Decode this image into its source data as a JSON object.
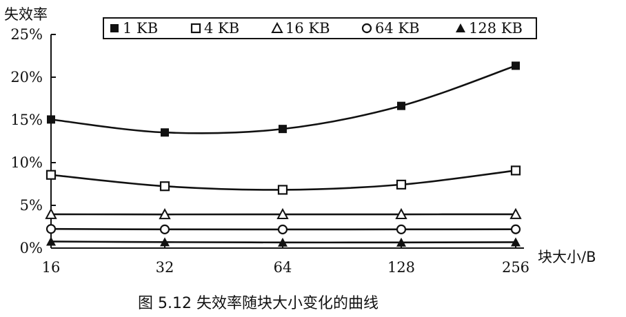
{
  "chart_data": {
    "type": "line",
    "title": "",
    "ylabel": "失效率",
    "xlabel": "块大小/B",
    "caption": "图 5.12   失效率随块大小变化的曲线",
    "categories": [
      "16",
      "32",
      "64",
      "128",
      "256"
    ],
    "yticks": [
      "0%",
      "5%",
      "10%",
      "15%",
      "20%",
      "25%"
    ],
    "ylim": [
      0,
      25
    ],
    "legend_position": "top",
    "grid": false,
    "series": [
      {
        "name": "1 KB",
        "marker": "filled-square",
        "values": [
          15.05,
          13.53,
          13.94,
          16.64,
          21.34
        ]
      },
      {
        "name": "4 KB",
        "marker": "open-square",
        "values": [
          8.57,
          7.24,
          6.82,
          7.43,
          9.08
        ]
      },
      {
        "name": "16 KB",
        "marker": "open-triangle",
        "values": [
          3.96,
          3.94,
          3.95,
          3.95,
          3.96
        ]
      },
      {
        "name": "64 KB",
        "marker": "open-circle",
        "values": [
          2.24,
          2.19,
          2.18,
          2.19,
          2.2
        ]
      },
      {
        "name": "128 KB",
        "marker": "filled-triangle",
        "values": [
          0.77,
          0.7,
          0.66,
          0.66,
          0.69
        ]
      }
    ]
  }
}
